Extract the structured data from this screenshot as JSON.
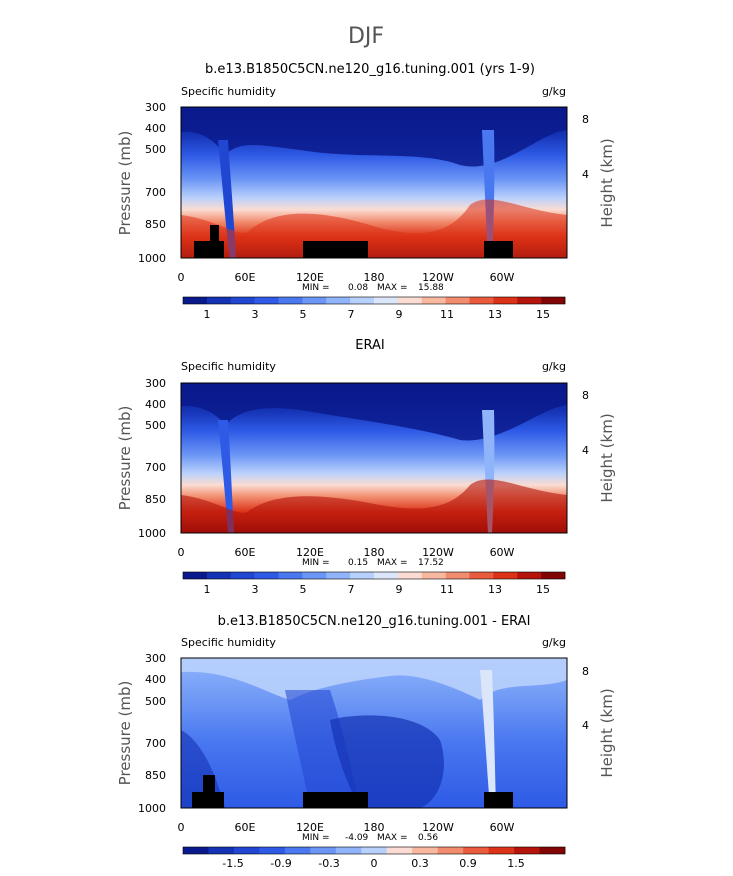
{
  "figure_title": "DJF",
  "chart_data": [
    {
      "type": "heatmap",
      "title": "b.e13.B1850C5CN.ne120_g16.tuning.001 (yrs 1-9)",
      "subtitle_left": "Specific humidity",
      "subtitle_right": "g/kg",
      "ylabel": "Pressure (mb)",
      "ylabel_right": "Height (km)",
      "x_ticks": [
        "0",
        "60E",
        "120E",
        "180",
        "120W",
        "60W"
      ],
      "y_ticks": [
        "300",
        "400",
        "500",
        "700",
        "850",
        "1000"
      ],
      "height_ticks": [
        "8",
        "4"
      ],
      "min_label": "MIN =",
      "min_value": "0.08",
      "max_label": "MAX =",
      "max_value": "15.88",
      "colorbar_labels": [
        "1",
        "3",
        "5",
        "7",
        "9",
        "11",
        "13",
        "15"
      ],
      "colorbar_colors": [
        "#0a1a8c",
        "#1432b4",
        "#2046d2",
        "#2e5ae6",
        "#4a78f0",
        "#6c96f5",
        "#90b4fa",
        "#b8d0fc",
        "#dce6fa",
        "#fadcd2",
        "#f8b8a0",
        "#f28c6e",
        "#ea5a3c",
        "#dc3218",
        "#b4140a",
        "#820505"
      ]
    },
    {
      "type": "heatmap",
      "title": "ERAI",
      "subtitle_left": "Specific humidity",
      "subtitle_right": "g/kg",
      "ylabel": "Pressure (mb)",
      "ylabel_right": "Height (km)",
      "x_ticks": [
        "0",
        "60E",
        "120E",
        "180",
        "120W",
        "60W"
      ],
      "y_ticks": [
        "300",
        "400",
        "500",
        "700",
        "850",
        "1000"
      ],
      "height_ticks": [
        "8",
        "4"
      ],
      "min_label": "MIN =",
      "min_value": "0.15",
      "max_label": "MAX =",
      "max_value": "17.52",
      "colorbar_labels": [
        "1",
        "3",
        "5",
        "7",
        "9",
        "11",
        "13",
        "15"
      ],
      "colorbar_colors": [
        "#0a1a8c",
        "#1432b4",
        "#2046d2",
        "#2e5ae6",
        "#4a78f0",
        "#6c96f5",
        "#90b4fa",
        "#b8d0fc",
        "#dce6fa",
        "#fadcd2",
        "#f8b8a0",
        "#f28c6e",
        "#ea5a3c",
        "#dc3218",
        "#b4140a",
        "#820505"
      ]
    },
    {
      "type": "heatmap",
      "title": "b.e13.B1850C5CN.ne120_g16.tuning.001 - ERAI",
      "subtitle_left": "Specific humidity",
      "subtitle_right": "g/kg",
      "ylabel": "Pressure (mb)",
      "ylabel_right": "Height (km)",
      "x_ticks": [
        "0",
        "60E",
        "120E",
        "180",
        "120W",
        "60W"
      ],
      "y_ticks": [
        "300",
        "400",
        "500",
        "700",
        "850",
        "1000"
      ],
      "height_ticks": [
        "8",
        "4"
      ],
      "min_label": "MIN =",
      "min_value": "-4.09",
      "max_label": "MAX =",
      "max_value": "0.56",
      "colorbar_labels": [
        "-1.5",
        "-0.9",
        "-0.3",
        "0",
        "0.3",
        "0.9",
        "1.5"
      ],
      "colorbar_colors": [
        "#0a1a8c",
        "#1432b4",
        "#2046d2",
        "#2e5ae6",
        "#4a78f0",
        "#6c96f5",
        "#90b4fa",
        "#b8d0fc",
        "#fadcd2",
        "#f8b8a0",
        "#f28c6e",
        "#ea5a3c",
        "#dc3218",
        "#b4140a",
        "#820505"
      ]
    }
  ]
}
